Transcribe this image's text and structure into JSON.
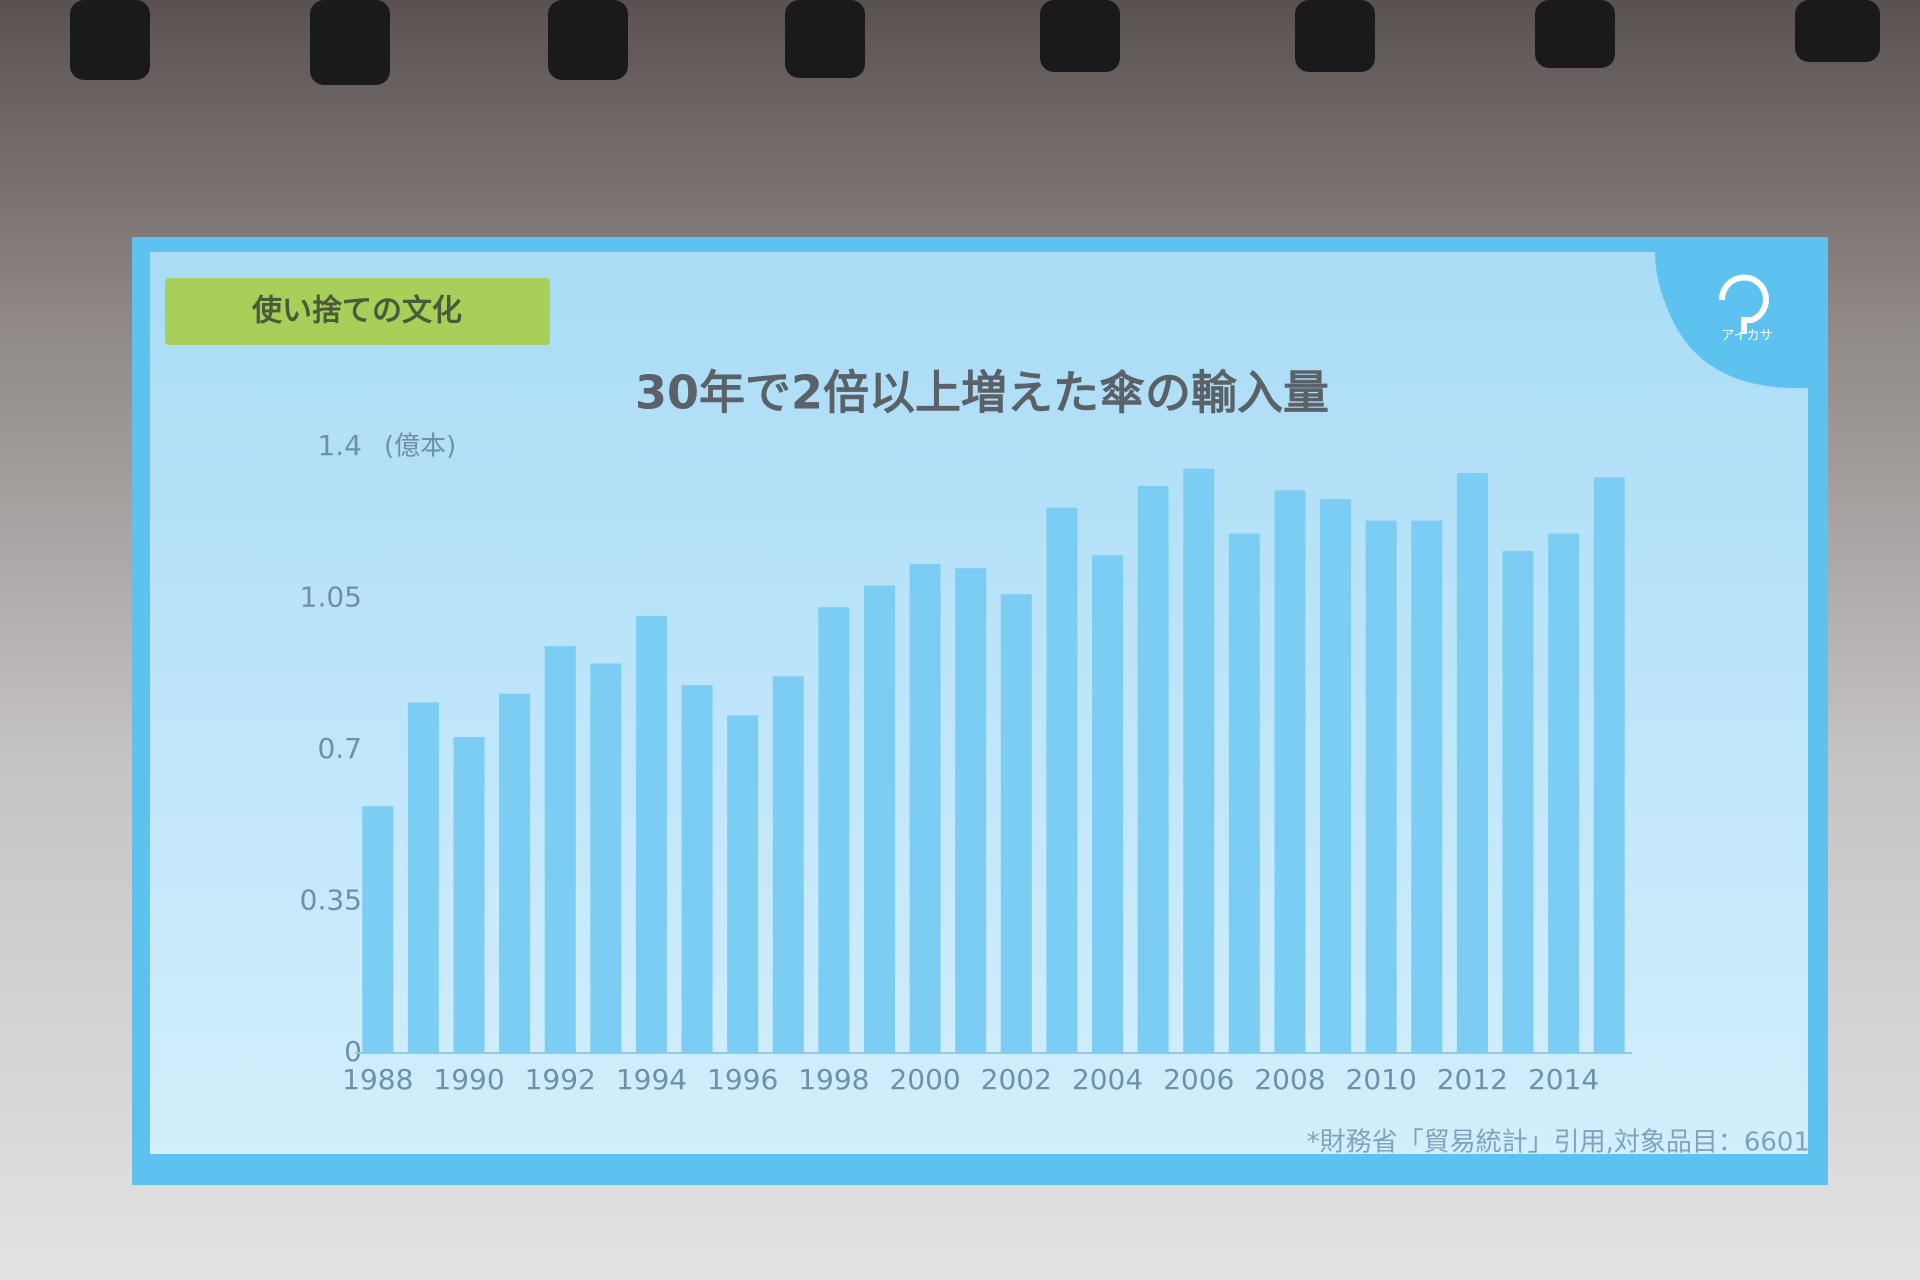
{
  "chart_data": {
    "type": "bar",
    "badge": "使い捨ての文化",
    "title": "30年で2倍以上増えた傘の輸入量",
    "y_label": "(億本)",
    "logo": "アイカサ",
    "source": "*財務省「貿易統計」引用,対象品目：6601",
    "categories": [
      "1988",
      null,
      "1990",
      null,
      "1992",
      null,
      "1994",
      null,
      "1996",
      null,
      "1998",
      null,
      "2000",
      null,
      "2002",
      null,
      "2004",
      null,
      "2006",
      null,
      "2008",
      null,
      "2010",
      null,
      "2012",
      null,
      "2014",
      null
    ],
    "values": [
      0.57,
      0.81,
      0.73,
      0.83,
      0.94,
      0.9,
      1.01,
      0.85,
      0.78,
      0.87,
      1.03,
      1.08,
      1.13,
      1.12,
      1.06,
      1.26,
      1.15,
      1.31,
      1.35,
      1.2,
      1.3,
      1.28,
      1.23,
      1.23,
      1.34,
      1.16,
      1.2,
      1.33
    ],
    "color": "#7ccdf4",
    "ylim": [
      0,
      1.4
    ],
    "yticks": [
      0,
      0.35,
      0.7,
      1.05,
      1.4
    ],
    "grid": false
  }
}
